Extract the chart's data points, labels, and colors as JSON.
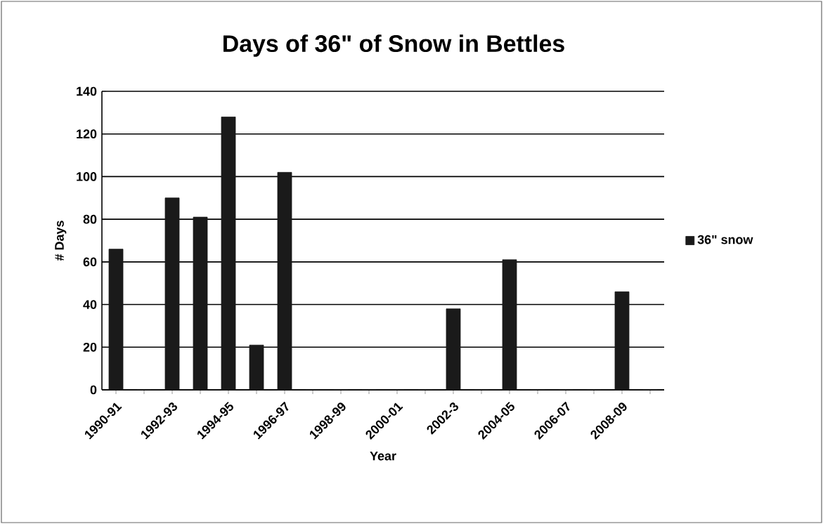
{
  "chart_data": {
    "type": "bar",
    "title": "Days of 36\" of Snow in Bettles",
    "xlabel": "Year",
    "ylabel": "# Days",
    "categories": [
      "1990-91",
      null,
      "1992-93",
      null,
      "1994-95",
      null,
      "1996-97",
      null,
      "1998-99",
      null,
      "2000-01",
      null,
      "2002-3",
      null,
      "2004-05",
      null,
      "2006-07",
      null,
      "2008-09",
      null
    ],
    "series": [
      {
        "name": "36\" snow",
        "color": "#1a1a1a",
        "values": [
          66,
          0,
          90,
          81,
          128,
          21,
          102,
          0,
          0,
          0,
          0,
          0,
          38,
          0,
          61,
          0,
          0,
          0,
          46,
          0
        ]
      }
    ],
    "ylim": [
      0,
      140
    ],
    "yticks": [
      0,
      20,
      40,
      60,
      80,
      100,
      120,
      140
    ],
    "grid": "y",
    "legend": "right"
  }
}
